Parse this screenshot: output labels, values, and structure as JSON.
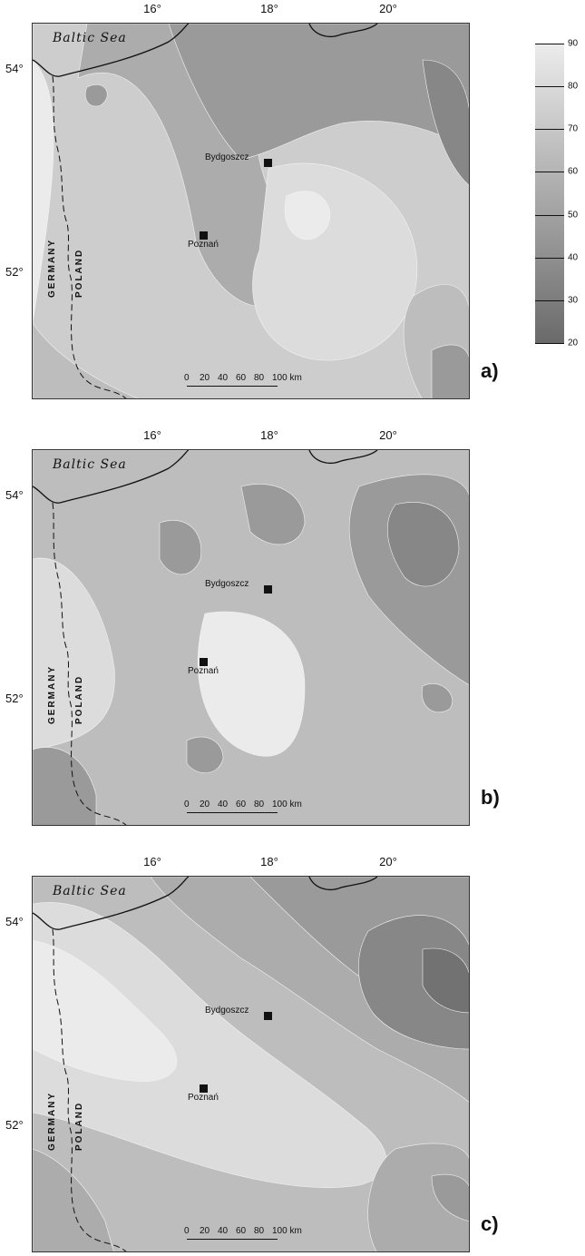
{
  "panels": [
    {
      "letter": "a)",
      "tone_shift": 0,
      "dark_zones": [
        "north-center",
        "northeast"
      ],
      "light_zones": [
        "center-east"
      ]
    },
    {
      "letter": "b)",
      "tone_shift": 1,
      "dark_zones": [
        "northeast"
      ],
      "light_zones": [
        "center"
      ]
    },
    {
      "letter": "c)",
      "tone_shift": 2,
      "dark_zones": [
        "northeast"
      ],
      "light_zones": [
        "west"
      ]
    }
  ],
  "map": {
    "sea_label": "Baltic Sea",
    "country_west": "GERMANY",
    "country_east": "POLAND",
    "lon_labels": [
      "16°",
      "18°",
      "20°"
    ],
    "lat_labels": [
      "54°",
      "52°"
    ],
    "cities": [
      {
        "name": "Bydgoszcz"
      },
      {
        "name": "Poznań"
      }
    ],
    "scale": {
      "ticks": [
        "0",
        "20",
        "40",
        "60",
        "80",
        "100 km"
      ]
    }
  },
  "legend": {
    "values": [
      "90",
      "80",
      "70",
      "60",
      "50",
      "40",
      "30",
      "20"
    ],
    "min": 20,
    "max": 90,
    "colors": {
      "high": "#e9e9e9",
      "low": "#6a6a6a"
    }
  },
  "colors": {
    "coast": "#111111",
    "border": "#111111",
    "contour_line": "#f2f2f2"
  }
}
